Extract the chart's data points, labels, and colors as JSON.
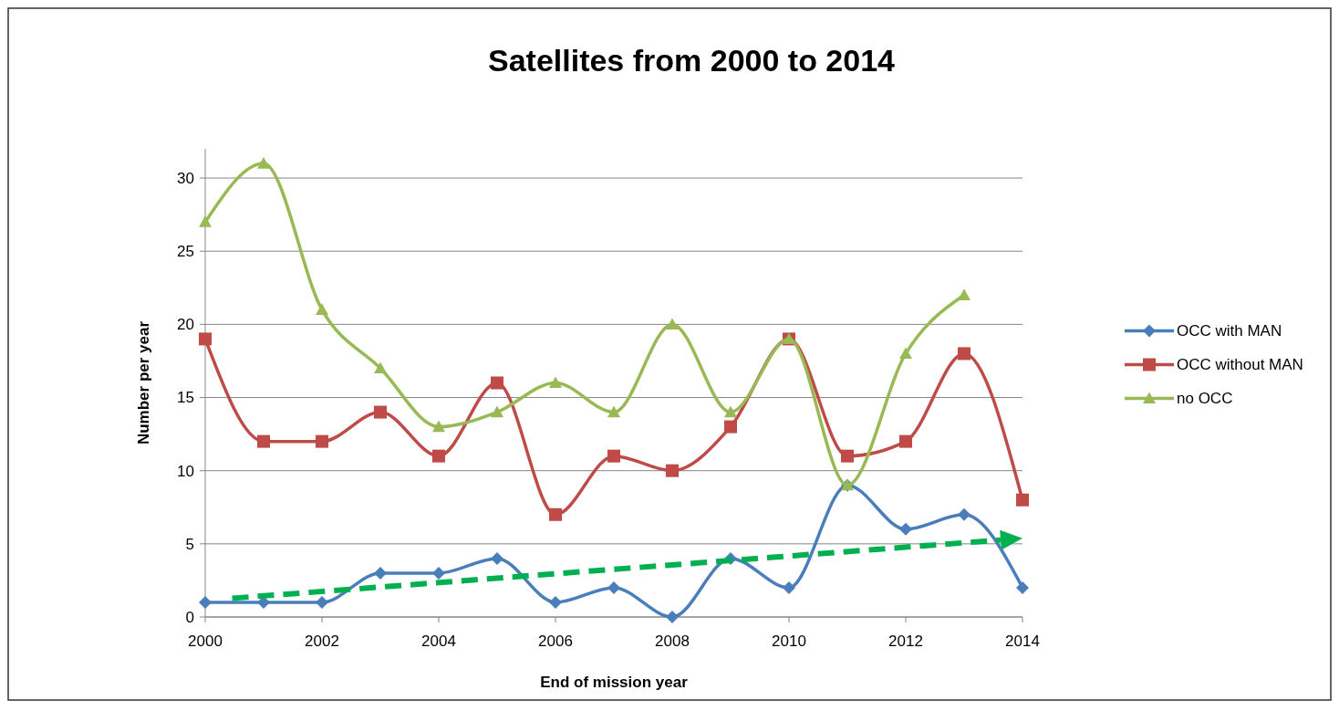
{
  "chart_data": {
    "type": "line",
    "title": "Satellites from 2000 to 2014",
    "xlabel": "End of mission year",
    "ylabel": "Number per year",
    "x": [
      2000,
      2001,
      2002,
      2003,
      2004,
      2005,
      2006,
      2007,
      2008,
      2009,
      2010,
      2011,
      2012,
      2013,
      2014
    ],
    "series": [
      {
        "name": "OCC with MAN",
        "color": "#4a7ebb",
        "marker": "diamond",
        "values": [
          1,
          1,
          1,
          3,
          3,
          4,
          1,
          2,
          0,
          4,
          2,
          9,
          6,
          7,
          2
        ]
      },
      {
        "name": "OCC without MAN",
        "color": "#be4b48",
        "marker": "square",
        "values": [
          19,
          12,
          12,
          14,
          11,
          16,
          7,
          11,
          10,
          13,
          19,
          11,
          12,
          18,
          8
        ]
      },
      {
        "name": "no OCC",
        "color": "#98b954",
        "marker": "triangle",
        "values": [
          27,
          31,
          21,
          17,
          13,
          14,
          16,
          14,
          20,
          14,
          19,
          9,
          18,
          22,
          null
        ]
      }
    ],
    "xlim": [
      2000,
      2014
    ],
    "xticks": [
      2000,
      2002,
      2004,
      2006,
      2008,
      2010,
      2012,
      2014
    ],
    "ylim": [
      0,
      32
    ],
    "yticks": [
      0,
      5,
      10,
      15,
      20,
      25,
      30
    ],
    "grid": "y",
    "legend": "right"
  }
}
